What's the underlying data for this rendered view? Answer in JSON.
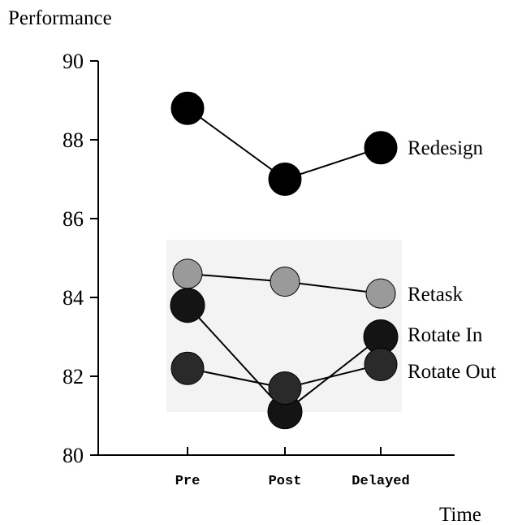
{
  "chart_data": {
    "type": "line",
    "ylabel": "Performance",
    "xlabel": "Time",
    "categories": [
      "Pre",
      "Post",
      "Delayed"
    ],
    "ylim": [
      80,
      90
    ],
    "yticks": [
      80,
      82,
      84,
      86,
      88,
      90
    ],
    "legend": "right-end labels",
    "series": [
      {
        "name": "Redesign",
        "values": [
          88.8,
          87.0,
          87.8
        ],
        "color": "#000000"
      },
      {
        "name": "Retask",
        "values": [
          84.6,
          84.4,
          84.1
        ],
        "color": "#9a9a9a"
      },
      {
        "name": "Rotate In",
        "values": [
          83.8,
          81.1,
          83.0
        ],
        "color": "#141414"
      },
      {
        "name": "Rotate Out",
        "values": [
          82.2,
          81.7,
          82.3
        ],
        "color": "#2a2a2a"
      }
    ]
  }
}
